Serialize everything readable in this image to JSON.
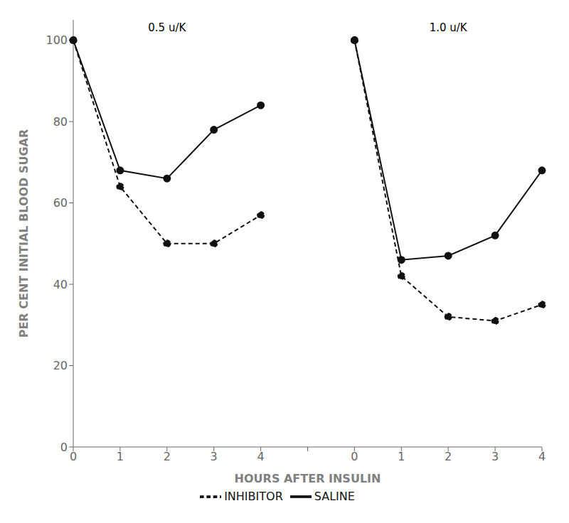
{
  "chart_data": {
    "type": "line",
    "x_label": "HOURS AFTER INSULIN",
    "y_label": "PER CENT INITIAL BLOOD SUGAR",
    "categories": [
      "0",
      "1",
      "2",
      "3",
      "4",
      null,
      "0",
      "1",
      "2",
      "3",
      "4"
    ],
    "series": [
      {
        "name": "SALINE",
        "color": "#111111",
        "line_style": "solid",
        "marker": "circle",
        "values": [
          100,
          68,
          66,
          78,
          84,
          null,
          100,
          46,
          47,
          52,
          68
        ]
      },
      {
        "name": "INHIBITOR",
        "color": "#111111",
        "line_style": "dashed",
        "marker": "circle",
        "values": [
          100,
          64,
          50,
          50,
          57,
          null,
          100,
          42,
          32,
          31,
          35
        ]
      }
    ],
    "annotations": [
      "0.5 u/K",
      "1.0 u/K"
    ],
    "ylim": [
      0,
      105
    ],
    "yticks": [
      0,
      20,
      40,
      60,
      80,
      100
    ],
    "grid": false,
    "legend": "bottom"
  }
}
